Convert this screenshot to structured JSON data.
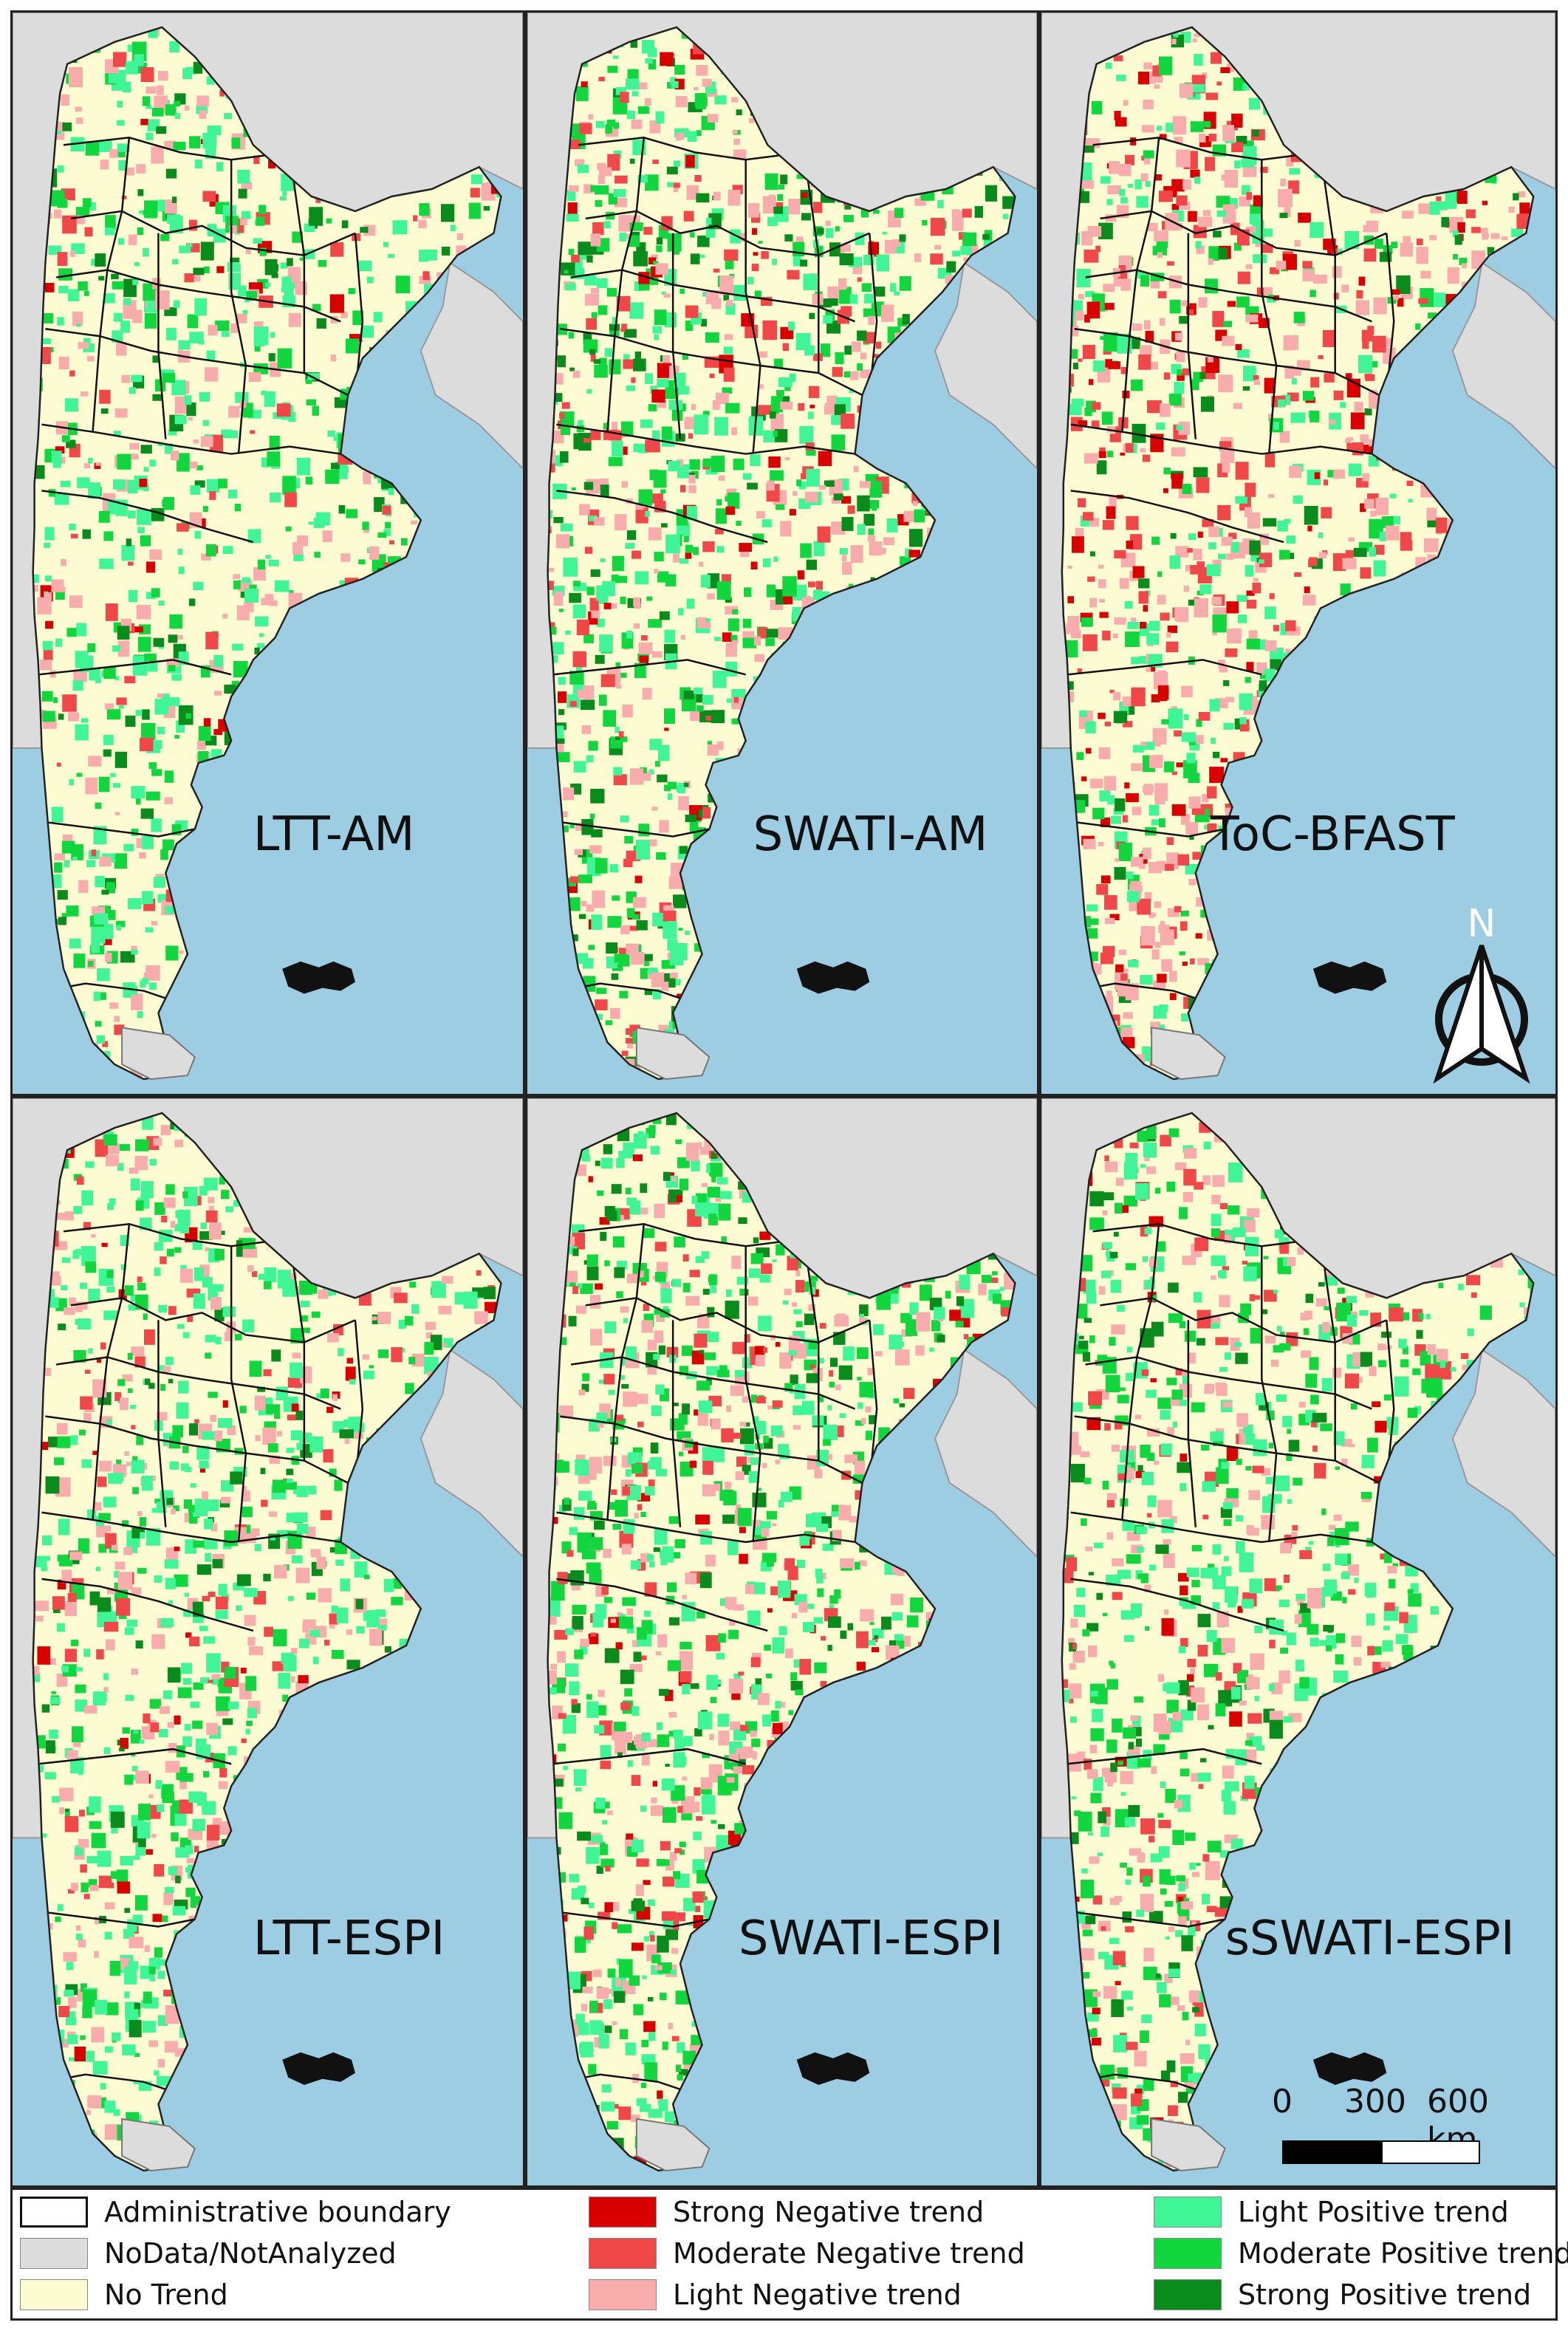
{
  "panels": [
    {
      "label": "LTT-AM"
    },
    {
      "label": "SWATI-AM"
    },
    {
      "label": "ToC-BFAST"
    },
    {
      "label": "LTT-ESPI"
    },
    {
      "label": "SWATI-ESPI"
    },
    {
      "label": "sSWATI-ESPI"
    }
  ],
  "north_arrow": {
    "label": "N"
  },
  "scale_bar": {
    "labels": [
      "0",
      "300",
      "600 km"
    ]
  },
  "legend": {
    "items": [
      {
        "label": "Administrative boundary",
        "color": "#ffffff"
      },
      {
        "label": "NoData/NotAnalyzed",
        "color": "#dcdcdc"
      },
      {
        "label": "No Trend",
        "color": "#fdfbd2"
      },
      {
        "label": "Strong Negative trend",
        "color": "#d80000"
      },
      {
        "label": "Moderate Negative trend",
        "color": "#f04848"
      },
      {
        "label": "Light Negative trend",
        "color": "#f8acac"
      },
      {
        "label": "Light Positive trend",
        "color": "#40f596"
      },
      {
        "label": "Moderate Positive trend",
        "color": "#12d63e"
      },
      {
        "label": "Strong Positive trend",
        "color": "#0a8c1c"
      }
    ]
  },
  "colors": {
    "ocean": "#9dcde3",
    "neighbor_land": "#dcdcdc",
    "no_trend": "#fdfbd2"
  }
}
